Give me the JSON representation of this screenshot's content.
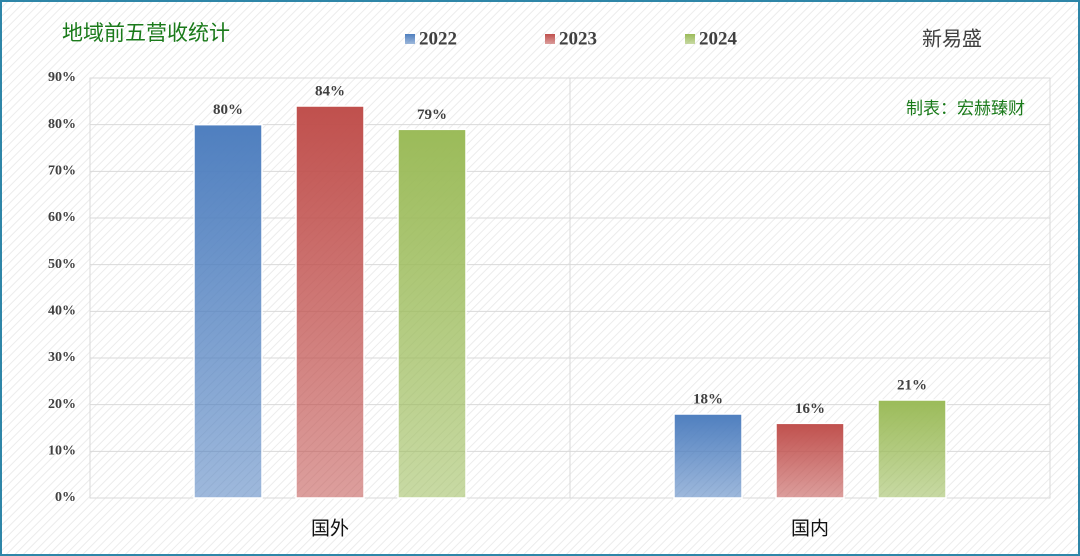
{
  "chart_data": {
    "type": "bar",
    "title": "地域前五营收统计",
    "subtitle": "新易盛",
    "annotation": "制表：宏赫臻财",
    "categories": [
      "国外",
      "国内"
    ],
    "series": [
      {
        "name": "2022",
        "color": "#4f7fbf",
        "values": [
          80,
          18
        ],
        "value_labels": [
          "80%",
          "18%"
        ]
      },
      {
        "name": "2023",
        "color": "#c0504d",
        "values": [
          84,
          16
        ],
        "value_labels": [
          "84%",
          "16%"
        ]
      },
      {
        "name": "2024",
        "color": "#9bbb59",
        "values": [
          79,
          21
        ],
        "value_labels": [
          "79%",
          "21%"
        ]
      }
    ],
    "ylim": [
      0,
      90
    ],
    "yticks": [
      {
        "value": 0,
        "label": "0%"
      },
      {
        "value": 10,
        "label": "10%"
      },
      {
        "value": 20,
        "label": "20%"
      },
      {
        "value": 30,
        "label": "30%"
      },
      {
        "value": 40,
        "label": "40%"
      },
      {
        "value": 50,
        "label": "50%"
      },
      {
        "value": 60,
        "label": "60%"
      },
      {
        "value": 70,
        "label": "70%"
      },
      {
        "value": 80,
        "label": "80%"
      },
      {
        "value": 90,
        "label": "90%"
      }
    ],
    "grid": true,
    "legend": "top"
  }
}
